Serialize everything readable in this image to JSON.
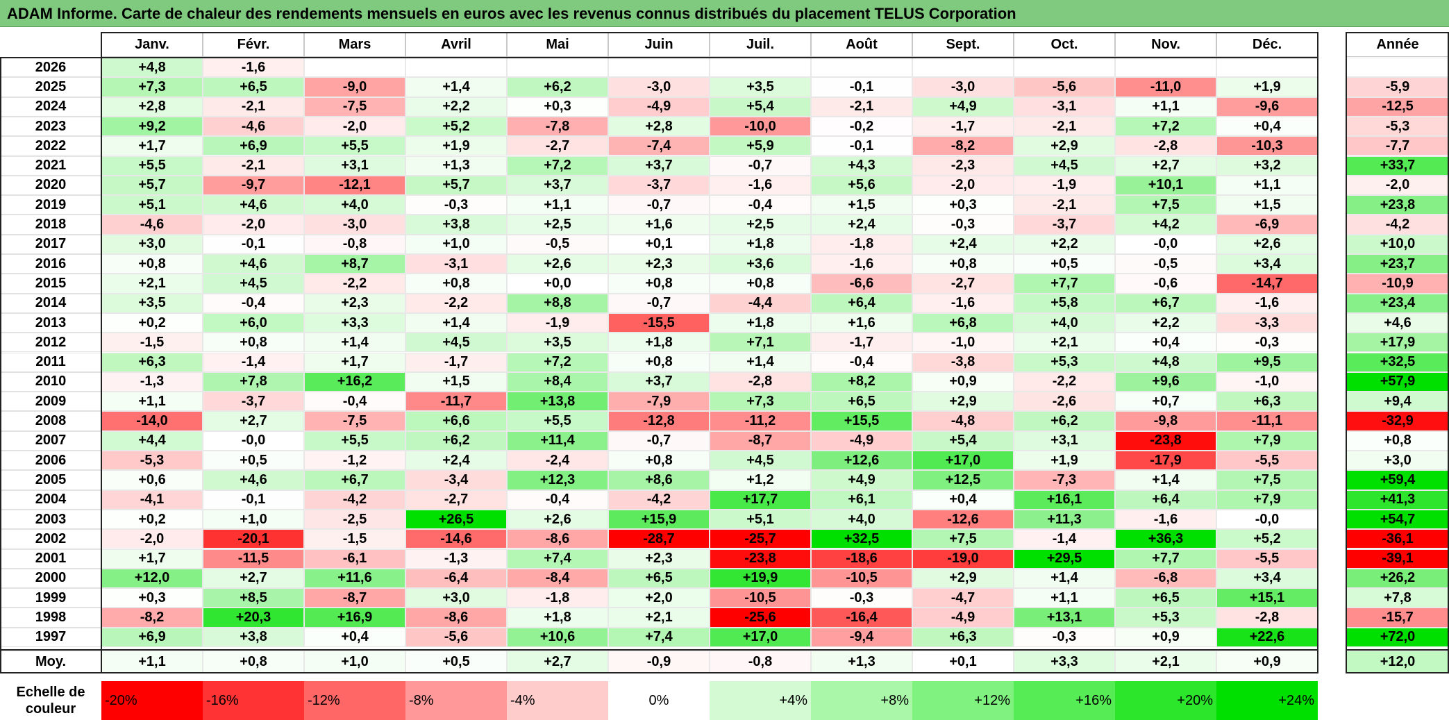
{
  "title": "ADAM Informe. Carte de chaleur des rendements mensuels en euros avec les revenus connus distribués du placement TELUS Corporation",
  "chart_data": {
    "type": "heatmap",
    "months": [
      "Janv.",
      "Févr.",
      "Mars",
      "Avril",
      "Mai",
      "Juin",
      "Juil.",
      "Août",
      "Sept.",
      "Oct.",
      "Nov.",
      "Déc."
    ],
    "annual_header": "Année",
    "rows": [
      {
        "year": "2026",
        "values": [
          "+4,8",
          "-1,6",
          "",
          "",
          "",
          "",
          "",
          "",
          "",
          "",
          "",
          ""
        ],
        "annual": ""
      },
      {
        "year": "2025",
        "values": [
          "+7,3",
          "+6,5",
          "-9,0",
          "+1,4",
          "+6,2",
          "-3,0",
          "+3,5",
          "-0,1",
          "-3,0",
          "-5,6",
          "-11,0",
          "+1,9"
        ],
        "annual": "-5,9"
      },
      {
        "year": "2024",
        "values": [
          "+2,8",
          "-2,1",
          "-7,5",
          "+2,2",
          "+0,3",
          "-4,9",
          "+5,4",
          "-2,1",
          "+4,9",
          "-3,1",
          "+1,1",
          "-9,6"
        ],
        "annual": "-12,5"
      },
      {
        "year": "2023",
        "values": [
          "+9,2",
          "-4,6",
          "-2,0",
          "+5,2",
          "-7,8",
          "+2,8",
          "-10,0",
          "-0,2",
          "-1,7",
          "-2,1",
          "+7,2",
          "+0,4"
        ],
        "annual": "-5,3"
      },
      {
        "year": "2022",
        "values": [
          "+1,7",
          "+6,9",
          "+5,5",
          "+1,9",
          "-2,7",
          "-7,4",
          "+5,9",
          "-0,1",
          "-8,2",
          "+2,9",
          "-2,8",
          "-10,3"
        ],
        "annual": "-7,7"
      },
      {
        "year": "2021",
        "values": [
          "+5,5",
          "-2,1",
          "+3,1",
          "+1,3",
          "+7,2",
          "+3,7",
          "-0,7",
          "+4,3",
          "-2,3",
          "+4,5",
          "+2,7",
          "+3,2"
        ],
        "annual": "+33,7"
      },
      {
        "year": "2020",
        "values": [
          "+5,7",
          "-9,7",
          "-12,1",
          "+5,7",
          "+3,7",
          "-3,7",
          "-1,6",
          "+5,6",
          "-2,0",
          "-1,9",
          "+10,1",
          "+1,1"
        ],
        "annual": "-2,0"
      },
      {
        "year": "2019",
        "values": [
          "+5,1",
          "+4,6",
          "+4,0",
          "-0,3",
          "+1,1",
          "-0,7",
          "-0,4",
          "+1,5",
          "+0,3",
          "-2,1",
          "+7,5",
          "+1,5"
        ],
        "annual": "+23,8"
      },
      {
        "year": "2018",
        "values": [
          "-4,6",
          "-2,0",
          "-3,0",
          "+3,8",
          "+2,5",
          "+1,6",
          "+2,5",
          "+2,4",
          "-0,3",
          "-3,7",
          "+4,2",
          "-6,9"
        ],
        "annual": "-4,2"
      },
      {
        "year": "2017",
        "values": [
          "+3,0",
          "-0,1",
          "-0,8",
          "+1,0",
          "-0,5",
          "+0,1",
          "+1,8",
          "-1,8",
          "+2,4",
          "+2,2",
          "-0,0",
          "+2,6"
        ],
        "annual": "+10,0"
      },
      {
        "year": "2016",
        "values": [
          "+0,8",
          "+4,6",
          "+8,7",
          "-3,1",
          "+2,6",
          "+2,3",
          "+3,6",
          "-1,6",
          "+0,8",
          "+0,5",
          "-0,5",
          "+3,4"
        ],
        "annual": "+23,7"
      },
      {
        "year": "2015",
        "values": [
          "+2,1",
          "+4,5",
          "-2,2",
          "+0,8",
          "+0,0",
          "+0,8",
          "+0,8",
          "-6,6",
          "-2,7",
          "+7,7",
          "-0,6",
          "-14,7"
        ],
        "annual": "-10,9"
      },
      {
        "year": "2014",
        "values": [
          "+3,5",
          "-0,4",
          "+2,3",
          "-2,2",
          "+8,8",
          "-0,7",
          "-4,4",
          "+6,4",
          "-1,6",
          "+5,8",
          "+6,7",
          "-1,6"
        ],
        "annual": "+23,4"
      },
      {
        "year": "2013",
        "values": [
          "+0,2",
          "+6,0",
          "+3,3",
          "+1,4",
          "-1,9",
          "-15,5",
          "+1,8",
          "+1,6",
          "+6,8",
          "+4,0",
          "+2,2",
          "-3,3"
        ],
        "annual": "+4,6"
      },
      {
        "year": "2012",
        "values": [
          "-1,5",
          "+0,8",
          "+1,4",
          "+4,5",
          "+3,5",
          "+1,8",
          "+7,1",
          "-1,7",
          "-1,0",
          "+2,1",
          "+0,4",
          "-0,3"
        ],
        "annual": "+17,9"
      },
      {
        "year": "2011",
        "values": [
          "+6,3",
          "-1,4",
          "+1,7",
          "-1,7",
          "+7,2",
          "+0,8",
          "+1,4",
          "-0,4",
          "-3,8",
          "+5,3",
          "+4,8",
          "+9,5"
        ],
        "annual": "+32,5"
      },
      {
        "year": "2010",
        "values": [
          "-1,3",
          "+7,8",
          "+16,2",
          "+1,5",
          "+8,4",
          "+3,7",
          "-2,8",
          "+8,2",
          "+0,9",
          "-2,2",
          "+9,6",
          "-1,0"
        ],
        "annual": "+57,9"
      },
      {
        "year": "2009",
        "values": [
          "+1,1",
          "-3,7",
          "-0,4",
          "-11,7",
          "+13,8",
          "-7,9",
          "+7,3",
          "+6,5",
          "+2,9",
          "-2,6",
          "+0,7",
          "+6,3"
        ],
        "annual": "+9,4"
      },
      {
        "year": "2008",
        "values": [
          "-14,0",
          "+2,7",
          "-7,5",
          "+6,6",
          "+5,5",
          "-12,8",
          "-11,2",
          "+15,5",
          "-4,8",
          "+6,2",
          "-9,8",
          "-11,1"
        ],
        "annual": "-32,9"
      },
      {
        "year": "2007",
        "values": [
          "+4,4",
          "-0,0",
          "+5,5",
          "+6,2",
          "+11,4",
          "-0,7",
          "-8,7",
          "-4,9",
          "+5,4",
          "+3,1",
          "-23,8",
          "+7,9"
        ],
        "annual": "+0,8"
      },
      {
        "year": "2006",
        "values": [
          "-5,3",
          "+0,5",
          "-1,2",
          "+2,4",
          "-2,4",
          "+0,8",
          "+4,5",
          "+12,6",
          "+17,0",
          "+1,9",
          "-17,9",
          "-5,5"
        ],
        "annual": "+3,0"
      },
      {
        "year": "2005",
        "values": [
          "+0,6",
          "+4,6",
          "+6,7",
          "-3,4",
          "+12,3",
          "+8,6",
          "+1,2",
          "+4,9",
          "+12,5",
          "-7,3",
          "+1,4",
          "+7,5"
        ],
        "annual": "+59,4"
      },
      {
        "year": "2004",
        "values": [
          "-4,1",
          "-0,1",
          "-4,2",
          "-2,7",
          "-0,4",
          "-4,2",
          "+17,7",
          "+6,1",
          "+0,4",
          "+16,1",
          "+6,4",
          "+7,9"
        ],
        "annual": "+41,3"
      },
      {
        "year": "2003",
        "values": [
          "+0,2",
          "+1,0",
          "-2,5",
          "+26,5",
          "+2,6",
          "+15,9",
          "+5,1",
          "+4,0",
          "-12,6",
          "+11,3",
          "-1,6",
          "-0,0"
        ],
        "annual": "+54,7"
      },
      {
        "year": "2002",
        "values": [
          "-2,0",
          "-20,1",
          "-1,5",
          "-14,6",
          "-8,6",
          "-28,7",
          "-25,7",
          "+32,5",
          "+7,5",
          "-1,4",
          "+36,3",
          "+5,2"
        ],
        "annual": "-36,1"
      },
      {
        "year": "2001",
        "values": [
          "+1,7",
          "-11,5",
          "-6,1",
          "-1,3",
          "+7,4",
          "+2,3",
          "-23,8",
          "-18,6",
          "-19,0",
          "+29,5",
          "+7,7",
          "-5,5"
        ],
        "annual": "-39,1"
      },
      {
        "year": "2000",
        "values": [
          "+12,0",
          "+2,7",
          "+11,6",
          "-6,4",
          "-8,4",
          "+6,5",
          "+19,9",
          "-10,5",
          "+2,9",
          "+1,4",
          "-6,8",
          "+3,4"
        ],
        "annual": "+26,2"
      },
      {
        "year": "1999",
        "values": [
          "+0,3",
          "+8,5",
          "-8,7",
          "+3,0",
          "-1,8",
          "+2,0",
          "-10,5",
          "-0,3",
          "-4,7",
          "+1,1",
          "+6,5",
          "+15,1"
        ],
        "annual": "+7,8"
      },
      {
        "year": "1998",
        "values": [
          "-8,2",
          "+20,3",
          "+16,9",
          "-8,6",
          "+1,8",
          "+2,1",
          "-25,6",
          "-16,4",
          "-4,9",
          "+13,1",
          "+5,3",
          "-2,8"
        ],
        "annual": "-15,7"
      },
      {
        "year": "1997",
        "values": [
          "+6,9",
          "+3,8",
          "+0,4",
          "-5,6",
          "+10,6",
          "+7,4",
          "+17,0",
          "-9,4",
          "+6,3",
          "-0,3",
          "+0,9",
          "+22,6"
        ],
        "annual": "+72,0"
      }
    ],
    "average": {
      "label": "Moy.",
      "values": [
        "+1,1",
        "+0,8",
        "+1,0",
        "+0,5",
        "+2,7",
        "-0,9",
        "-0,8",
        "+1,3",
        "+0,1",
        "+3,3",
        "+2,1",
        "+0,9"
      ],
      "annual": "+12,0"
    },
    "color_scale": {
      "label_line1": "Echelle de",
      "label_line2": "couleur",
      "stops": [
        {
          "label": "-20%",
          "value": -20,
          "color": "#ff0000"
        },
        {
          "label": "-16%",
          "value": -16,
          "color": "#ff3333"
        },
        {
          "label": "-12%",
          "value": -12,
          "color": "#ff6666"
        },
        {
          "label": "-8%",
          "value": -8,
          "color": "#ff9999"
        },
        {
          "label": "-4%",
          "value": -4,
          "color": "#ffcccc"
        },
        {
          "label": "0%",
          "value": 0,
          "color": "#ffffff"
        },
        {
          "label": "+4%",
          "value": 4,
          "color": "#d4fad4"
        },
        {
          "label": "+8%",
          "value": 8,
          "color": "#aaf7aa"
        },
        {
          "label": "+12%",
          "value": 12,
          "color": "#80f280"
        },
        {
          "label": "+16%",
          "value": 16,
          "color": "#55ec55"
        },
        {
          "label": "+20%",
          "value": 20,
          "color": "#2be62b"
        },
        {
          "label": "+24%",
          "value": 24,
          "color": "#00e000"
        }
      ]
    }
  }
}
